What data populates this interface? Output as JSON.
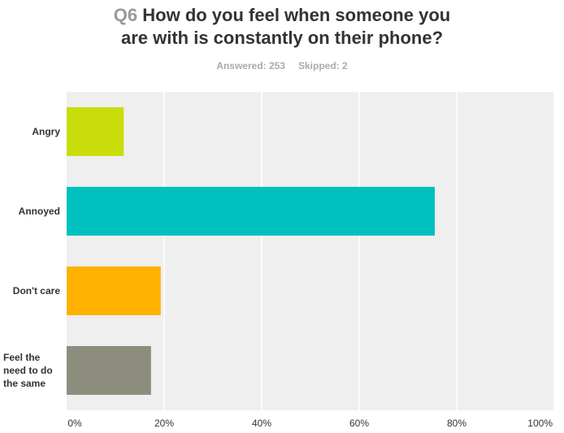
{
  "chart_data": {
    "type": "bar",
    "orientation": "horizontal",
    "question": "Q6",
    "title": [
      "How do you feel when someone you",
      "are with is constantly on their phone?"
    ],
    "subtitle": [
      "Answered: 253",
      "Skipped: 2"
    ],
    "categories": [
      "Angry",
      "Annoyed",
      "Don't care",
      "Feel the need to do the same"
    ],
    "values": [
      11.7,
      75.5,
      19.3,
      17.3
    ],
    "colors": [
      "#c9dd0b",
      "#00c0c0",
      "#ffb100",
      "#8d8d7e"
    ],
    "xlim": [
      0,
      100
    ],
    "xticks": [
      {
        "value": 0,
        "label": "0%"
      },
      {
        "value": 20,
        "label": "20%"
      },
      {
        "value": 40,
        "label": "40%"
      },
      {
        "value": 60,
        "label": "60%"
      },
      {
        "value": 80,
        "label": "80%"
      },
      {
        "value": 100,
        "label": "100%"
      }
    ],
    "grid": true
  }
}
